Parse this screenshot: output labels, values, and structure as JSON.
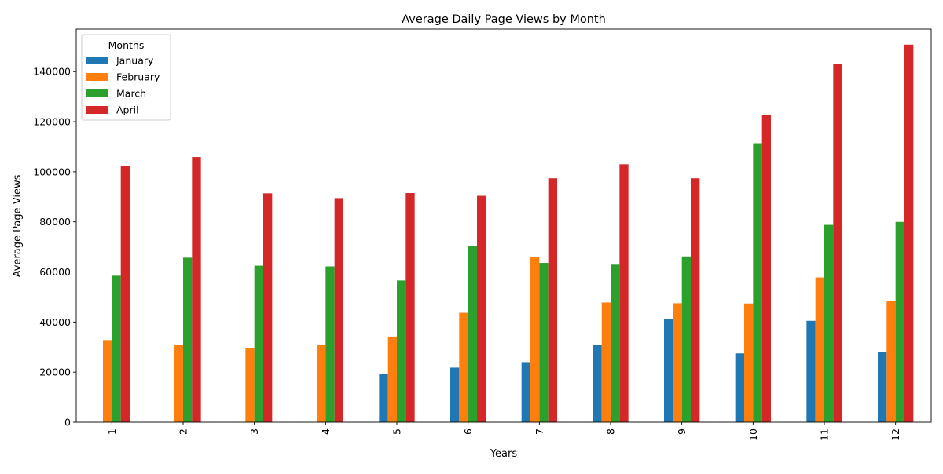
{
  "chart_data": {
    "type": "bar",
    "title": "Average Daily Page Views by Month",
    "xlabel": "Years",
    "ylabel": "Average Page Views",
    "categories": [
      "1",
      "2",
      "3",
      "4",
      "5",
      "6",
      "7",
      "8",
      "9",
      "10",
      "11",
      "12"
    ],
    "series": [
      {
        "name": "January",
        "color": "#1f77b4",
        "values": [
          null,
          null,
          null,
          null,
          19200,
          21800,
          24000,
          31000,
          41300,
          27500,
          40500,
          27900
        ]
      },
      {
        "name": "February",
        "color": "#ff7f0e",
        "values": [
          32800,
          31000,
          29500,
          31000,
          34200,
          43700,
          65800,
          47800,
          47500,
          47400,
          57800,
          48300
        ]
      },
      {
        "name": "March",
        "color": "#2ca02c",
        "values": [
          58500,
          65700,
          62500,
          62200,
          56600,
          70200,
          63600,
          62900,
          66200,
          111400,
          78800,
          80000
        ]
      },
      {
        "name": "April",
        "color": "#d62728",
        "values": [
          102200,
          105900,
          91400,
          89500,
          91500,
          90400,
          97400,
          103000,
          97400,
          122800,
          143100,
          150800
        ]
      }
    ],
    "ylim": [
      0,
      157000
    ],
    "yticks": [
      0,
      20000,
      40000,
      60000,
      80000,
      100000,
      120000,
      140000
    ],
    "legend": {
      "title": "Months",
      "placement": "top-left"
    },
    "grid": false
  }
}
